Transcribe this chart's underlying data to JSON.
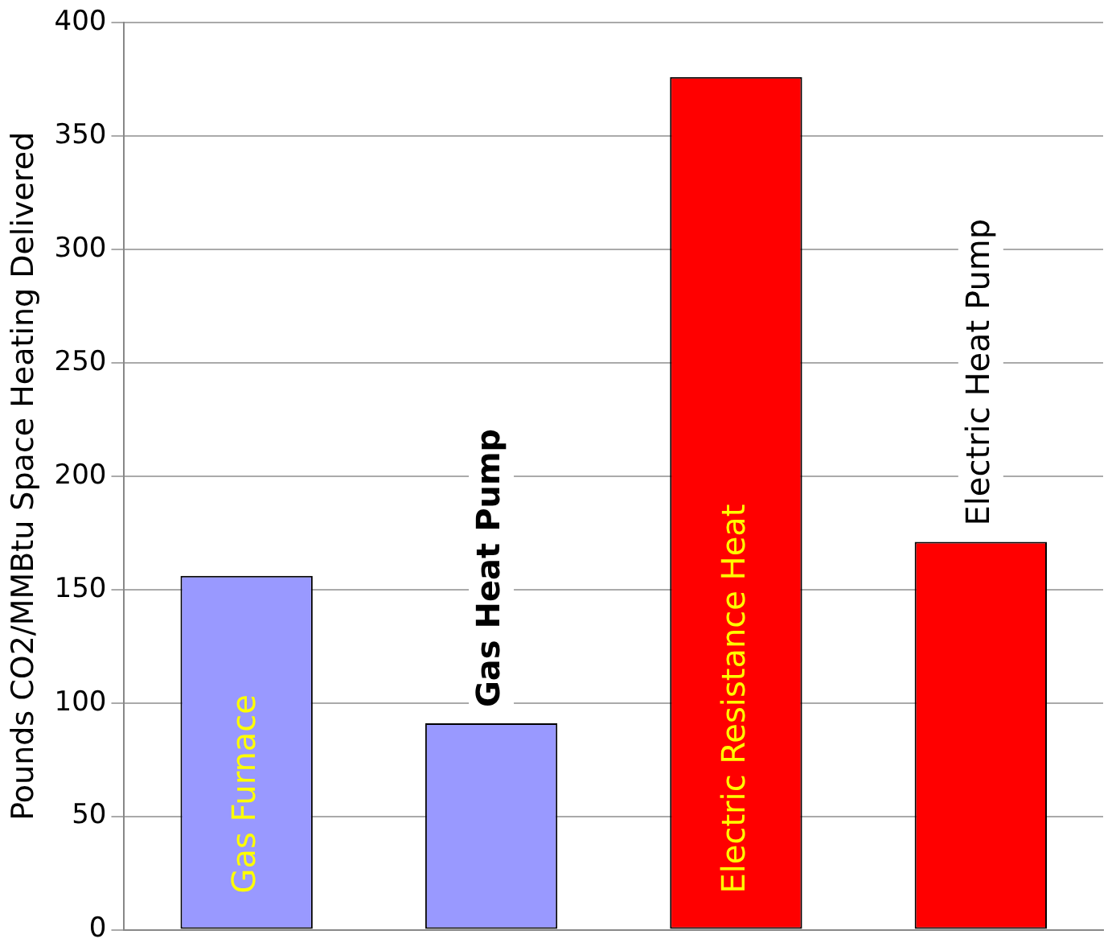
{
  "chart_data": {
    "type": "bar",
    "ylabel": "Pounds CO2/MMBtu Space Heating Delivered",
    "categories": [
      "Gas Furnace",
      "Gas Heat Pump",
      "Electric Resistance Heat",
      "Electric Heat Pump"
    ],
    "values": [
      156,
      91,
      376,
      171
    ],
    "colors": [
      "#9999ff",
      "#9999ff",
      "#ff0000",
      "#ff0000"
    ],
    "ylim": [
      0,
      400
    ],
    "yticks": [
      0,
      50,
      100,
      150,
      200,
      250,
      300,
      350,
      400
    ],
    "grid": "y"
  }
}
